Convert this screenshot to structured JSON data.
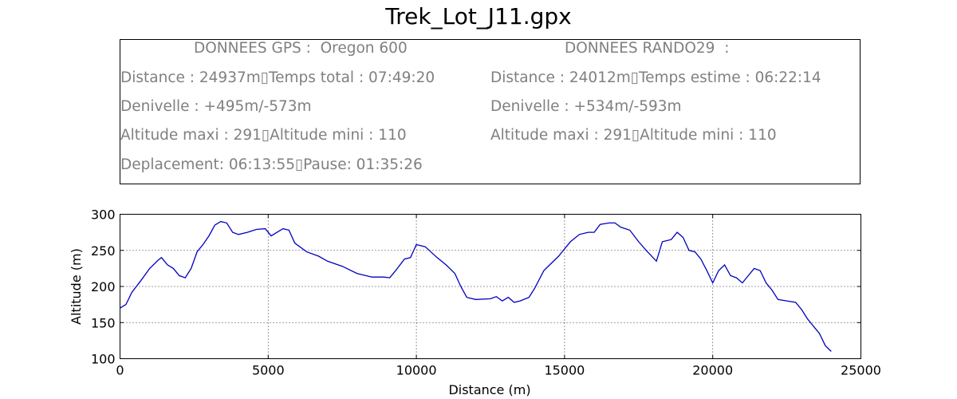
{
  "title": "Trek_Lot_J11.gpx",
  "info": {
    "gps": {
      "header": "DONNEES GPS :  Oregon 600",
      "line1": "Distance : 24937m▯Temps total : 07:49:20",
      "line2": "Denivelle : +495m/-573m",
      "line3": "Altitude maxi : 291▯Altitude mini : 110",
      "line4": "Deplacement: 06:13:55▯Pause: 01:35:26"
    },
    "rando": {
      "header": "DONNEES RANDO29  :",
      "line1": "Distance : 24012m▯Temps estime : 06:22:14",
      "line2": "Denivelle : +534m/-593m",
      "line3": "Altitude maxi : 291▯Altitude mini : 110"
    }
  },
  "chart_data": {
    "type": "line",
    "xlabel": "Distance (m)",
    "ylabel": "Altitude (m)",
    "xlim": [
      0,
      25000
    ],
    "ylim": [
      100,
      300
    ],
    "xticks": [
      0,
      5000,
      10000,
      15000,
      20000,
      25000
    ],
    "yticks": [
      100,
      150,
      200,
      250,
      300
    ],
    "grid": true,
    "line_color": "#0000bf",
    "series": [
      {
        "x": [
          0,
          200,
          400,
          700,
          1000,
          1300,
          1400,
          1600,
          1800,
          2000,
          2200,
          2400,
          2600,
          2800,
          3000,
          3200,
          3400,
          3600,
          3800,
          4000,
          4300,
          4600,
          4900,
          5100,
          5300,
          5500,
          5700,
          5900,
          6300,
          6700,
          7000,
          7500,
          8000,
          8500,
          8900,
          9100,
          9300,
          9600,
          9800,
          10000,
          10300,
          10700,
          11000,
          11300,
          11500,
          11700,
          12000,
          12500,
          12700,
          12900,
          13100,
          13300,
          13500,
          13800,
          14000,
          14300,
          14500,
          14800,
          15000,
          15200,
          15500,
          15800,
          16000,
          16200,
          16500,
          16700,
          16900,
          17200,
          17500,
          17800,
          18100,
          18300,
          18600,
          18800,
          19000,
          19200,
          19400,
          19600,
          19800,
          20000,
          20200,
          20400,
          20600,
          20800,
          21000,
          21200,
          21400,
          21600,
          21800,
          22000,
          22200,
          22500,
          22800,
          23000,
          23200,
          23400,
          23600,
          23800,
          24000
        ],
        "y": [
          170,
          175,
          192,
          208,
          225,
          237,
          240,
          230,
          225,
          215,
          212,
          225,
          248,
          258,
          270,
          285,
          290,
          288,
          275,
          272,
          275,
          279,
          280,
          270,
          275,
          280,
          278,
          260,
          248,
          242,
          235,
          228,
          218,
          213,
          213,
          212,
          222,
          238,
          240,
          258,
          255,
          240,
          230,
          218,
          200,
          185,
          182,
          183,
          186,
          180,
          185,
          178,
          180,
          185,
          198,
          222,
          230,
          242,
          252,
          262,
          272,
          275,
          275,
          286,
          288,
          288,
          282,
          278,
          262,
          248,
          235,
          262,
          265,
          275,
          268,
          250,
          248,
          238,
          222,
          205,
          222,
          230,
          215,
          212,
          205,
          215,
          225,
          222,
          205,
          195,
          182,
          180,
          178,
          168,
          155,
          145,
          135,
          118,
          110
        ]
      }
    ]
  }
}
